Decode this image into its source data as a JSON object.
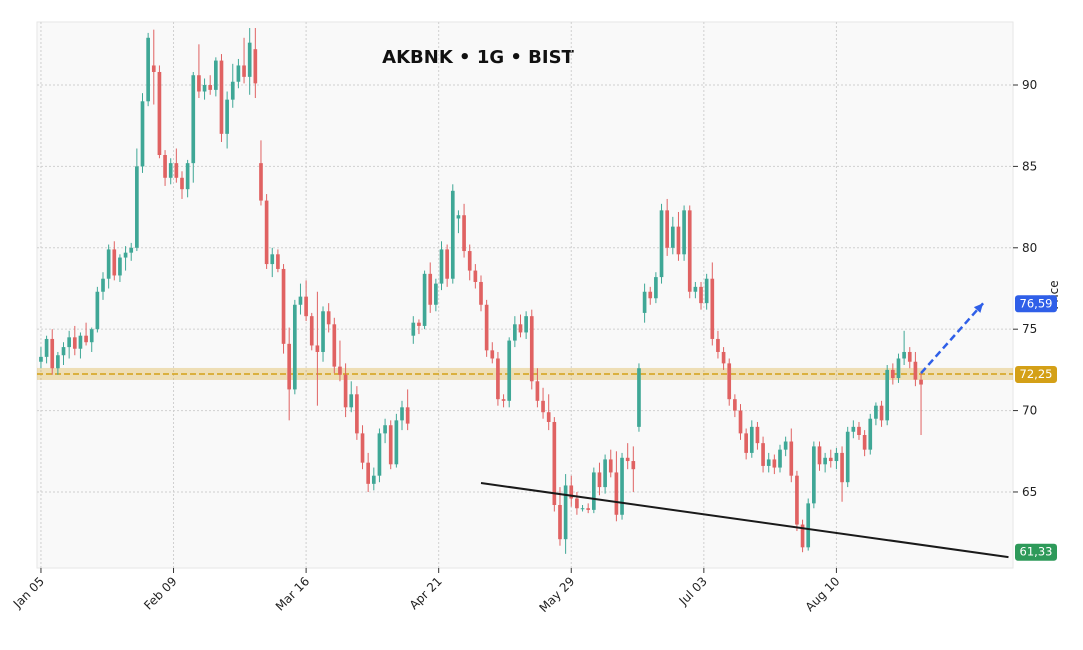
{
  "chart_data": {
    "type": "candlestick",
    "title": "AKBNK • 1G • BIST",
    "y_label": "Price",
    "xlim": [
      -0.7,
      172.3
    ],
    "xticks": [
      {
        "value": 0,
        "label": "Jan 05"
      },
      {
        "value": 23.5,
        "label": "Feb 09"
      },
      {
        "value": 47,
        "label": "Mar 16"
      },
      {
        "value": 70.5,
        "label": "Apr 21"
      },
      {
        "value": 94,
        "label": "May 29"
      },
      {
        "value": 117.5,
        "label": "Jul 03"
      },
      {
        "value": 141,
        "label": "Aug 10"
      }
    ],
    "ylim": [
      60.33,
      93.87
    ],
    "yticks": [
      65,
      70,
      75,
      80,
      85,
      90
    ],
    "grid": true,
    "up_color": "#3fa796",
    "down_color": "#e06262",
    "ohlc": [
      [
        73.0,
        73.9,
        72.6,
        73.3
      ],
      [
        73.3,
        74.6,
        72.9,
        74.4
      ],
      [
        74.4,
        75.0,
        72.2,
        72.6
      ],
      [
        72.6,
        73.6,
        72.2,
        73.4
      ],
      [
        73.4,
        74.2,
        72.8,
        73.9
      ],
      [
        73.9,
        74.9,
        73.2,
        74.5
      ],
      [
        74.5,
        75.2,
        73.4,
        73.8
      ],
      [
        73.8,
        74.8,
        73.2,
        74.6
      ],
      [
        74.6,
        75.4,
        74.0,
        74.2
      ],
      [
        74.2,
        75.1,
        73.6,
        75.0
      ],
      [
        75.0,
        77.6,
        74.8,
        77.3
      ],
      [
        77.3,
        78.5,
        76.8,
        78.1
      ],
      [
        78.1,
        80.2,
        77.5,
        79.9
      ],
      [
        79.9,
        80.4,
        78.0,
        78.3
      ],
      [
        78.3,
        79.6,
        77.9,
        79.4
      ],
      [
        79.4,
        80.1,
        78.6,
        79.7
      ],
      [
        79.7,
        80.3,
        79.2,
        80.0
      ],
      [
        80.0,
        86.1,
        79.8,
        85.0
      ],
      [
        85.0,
        89.5,
        84.6,
        89.0
      ],
      [
        89.0,
        93.2,
        88.7,
        92.9
      ],
      [
        91.2,
        93.4,
        88.8,
        90.8
      ],
      [
        90.8,
        91.2,
        85.5,
        85.7
      ],
      [
        85.7,
        86.0,
        83.8,
        84.3
      ],
      [
        84.3,
        85.5,
        83.9,
        85.2
      ],
      [
        85.2,
        86.1,
        84.0,
        84.3
      ],
      [
        84.3,
        84.7,
        83.0,
        83.6
      ],
      [
        83.6,
        85.4,
        83.1,
        85.2
      ],
      [
        85.2,
        90.8,
        84.0,
        90.6
      ],
      [
        90.6,
        92.5,
        89.2,
        89.6
      ],
      [
        89.6,
        90.4,
        89.1,
        90.0
      ],
      [
        90.0,
        90.6,
        89.4,
        89.7
      ],
      [
        89.7,
        91.7,
        89.3,
        91.5
      ],
      [
        91.5,
        91.9,
        86.5,
        87.0
      ],
      [
        87.0,
        89.6,
        86.1,
        89.1
      ],
      [
        89.1,
        91.3,
        88.6,
        90.2
      ],
      [
        90.2,
        91.6,
        89.8,
        91.2
      ],
      [
        91.2,
        92.9,
        90.1,
        90.5
      ],
      [
        90.5,
        93.5,
        89.4,
        92.6
      ],
      [
        92.2,
        93.5,
        89.2,
        90.1
      ],
      [
        85.2,
        86.6,
        82.6,
        82.9
      ],
      [
        82.9,
        83.3,
        78.7,
        79.0
      ],
      [
        79.0,
        80.0,
        78.2,
        79.6
      ],
      [
        79.6,
        79.9,
        78.5,
        78.7
      ],
      [
        78.7,
        79.0,
        73.5,
        74.1
      ],
      [
        74.1,
        75.1,
        69.4,
        71.3
      ],
      [
        71.3,
        76.8,
        71.0,
        76.5
      ],
      [
        76.5,
        77.8,
        75.9,
        77.0
      ],
      [
        77.0,
        78.0,
        75.5,
        75.8
      ],
      [
        75.8,
        76.0,
        73.7,
        74.0
      ],
      [
        74.0,
        77.3,
        70.3,
        73.6
      ],
      [
        73.6,
        76.4,
        73.0,
        76.1
      ],
      [
        76.1,
        76.6,
        74.8,
        75.3
      ],
      [
        75.3,
        75.7,
        72.3,
        72.7
      ],
      [
        72.7,
        74.3,
        71.8,
        72.2
      ],
      [
        72.2,
        72.9,
        69.6,
        70.2
      ],
      [
        70.2,
        71.8,
        69.9,
        71.0
      ],
      [
        71.0,
        71.5,
        68.2,
        68.6
      ],
      [
        68.6,
        69.1,
        66.4,
        66.8
      ],
      [
        66.8,
        67.4,
        65.0,
        65.5
      ],
      [
        65.5,
        66.5,
        65.1,
        66.0
      ],
      [
        66.0,
        68.9,
        65.6,
        68.6
      ],
      [
        68.6,
        69.5,
        68.0,
        69.1
      ],
      [
        69.1,
        69.4,
        66.4,
        66.7
      ],
      [
        66.7,
        69.8,
        66.5,
        69.4
      ],
      [
        69.4,
        70.6,
        68.8,
        70.2
      ],
      [
        70.2,
        71.3,
        68.8,
        69.2
      ],
      [
        74.6,
        75.8,
        74.1,
        75.4
      ],
      [
        75.4,
        75.6,
        74.7,
        75.2
      ],
      [
        75.2,
        78.6,
        75.0,
        78.4
      ],
      [
        78.4,
        79.1,
        76.0,
        76.5
      ],
      [
        76.5,
        78.1,
        76.1,
        77.8
      ],
      [
        77.8,
        80.4,
        77.4,
        79.9
      ],
      [
        79.9,
        80.2,
        77.6,
        78.1
      ],
      [
        78.1,
        83.9,
        77.8,
        83.5
      ],
      [
        81.8,
        82.3,
        80.9,
        82.0
      ],
      [
        82.0,
        82.7,
        79.4,
        79.8
      ],
      [
        79.8,
        80.2,
        78.0,
        78.6
      ],
      [
        78.6,
        79.0,
        77.5,
        77.9
      ],
      [
        77.9,
        78.3,
        76.1,
        76.5
      ],
      [
        76.5,
        76.8,
        73.3,
        73.7
      ],
      [
        73.7,
        74.2,
        72.9,
        73.2
      ],
      [
        73.2,
        73.6,
        70.3,
        70.7
      ],
      [
        70.7,
        71.0,
        70.2,
        70.6
      ],
      [
        70.6,
        74.5,
        70.2,
        74.3
      ],
      [
        74.3,
        75.8,
        73.9,
        75.3
      ],
      [
        75.3,
        75.9,
        74.5,
        74.8
      ],
      [
        74.8,
        76.1,
        74.4,
        75.8
      ],
      [
        75.8,
        76.2,
        71.3,
        71.8
      ],
      [
        71.8,
        72.6,
        70.2,
        70.6
      ],
      [
        70.6,
        71.4,
        69.5,
        69.9
      ],
      [
        69.9,
        71.0,
        68.8,
        69.3
      ],
      [
        69.3,
        69.6,
        63.8,
        64.2
      ],
      [
        64.2,
        65.3,
        61.7,
        62.1
      ],
      [
        62.1,
        66.1,
        61.2,
        65.4
      ],
      [
        65.4,
        66.0,
        64.1,
        64.6
      ],
      [
        64.6,
        65.0,
        63.6,
        64.0
      ],
      [
        64.0,
        64.2,
        63.8,
        64.0
      ],
      [
        64.0,
        64.3,
        63.7,
        63.9
      ],
      [
        63.9,
        66.5,
        63.7,
        66.2
      ],
      [
        66.2,
        66.8,
        64.8,
        65.3
      ],
      [
        65.3,
        67.3,
        64.9,
        67.0
      ],
      [
        67.0,
        67.6,
        65.9,
        66.2
      ],
      [
        66.2,
        67.5,
        63.2,
        63.6
      ],
      [
        63.6,
        67.4,
        63.3,
        67.1
      ],
      [
        67.1,
        68.0,
        66.4,
        66.9
      ],
      [
        66.9,
        67.8,
        65.0,
        66.4
      ],
      [
        69.0,
        72.9,
        68.7,
        72.6
      ],
      [
        76.0,
        77.8,
        75.4,
        77.3
      ],
      [
        77.3,
        77.6,
        76.5,
        76.9
      ],
      [
        76.9,
        78.5,
        76.6,
        78.2
      ],
      [
        78.2,
        82.7,
        77.8,
        82.3
      ],
      [
        82.3,
        83.0,
        79.5,
        80.0
      ],
      [
        80.0,
        81.9,
        79.6,
        81.3
      ],
      [
        81.3,
        82.2,
        79.2,
        79.6
      ],
      [
        79.6,
        82.6,
        79.2,
        82.3
      ],
      [
        82.3,
        82.6,
        76.9,
        77.3
      ],
      [
        77.3,
        77.9,
        76.9,
        77.6
      ],
      [
        77.6,
        77.9,
        76.2,
        76.6
      ],
      [
        76.6,
        78.4,
        76.2,
        78.1
      ],
      [
        78.1,
        79.1,
        74.0,
        74.4
      ],
      [
        74.4,
        74.9,
        73.2,
        73.6
      ],
      [
        73.6,
        73.9,
        72.5,
        72.9
      ],
      [
        72.9,
        73.2,
        70.3,
        70.7
      ],
      [
        70.7,
        71.0,
        69.6,
        70.0
      ],
      [
        70.0,
        70.4,
        68.2,
        68.6
      ],
      [
        68.6,
        68.9,
        67.0,
        67.4
      ],
      [
        67.4,
        69.4,
        67.1,
        69.0
      ],
      [
        69.0,
        69.3,
        67.6,
        68.0
      ],
      [
        68.0,
        68.4,
        66.2,
        66.6
      ],
      [
        66.6,
        67.4,
        66.2,
        67.0
      ],
      [
        67.0,
        67.3,
        66.1,
        66.5
      ],
      [
        66.5,
        67.9,
        66.2,
        67.6
      ],
      [
        67.6,
        68.4,
        67.2,
        68.1
      ],
      [
        68.1,
        68.9,
        65.6,
        66.0
      ],
      [
        66.0,
        66.3,
        62.6,
        63.0
      ],
      [
        63.0,
        63.3,
        61.3,
        61.6
      ],
      [
        61.6,
        64.6,
        61.4,
        64.3
      ],
      [
        64.3,
        68.1,
        64.0,
        67.8
      ],
      [
        67.8,
        68.1,
        66.3,
        66.7
      ],
      [
        66.7,
        67.4,
        66.2,
        67.1
      ],
      [
        67.1,
        67.6,
        66.5,
        66.9
      ],
      [
        66.9,
        67.7,
        66.4,
        67.4
      ],
      [
        67.4,
        67.8,
        64.4,
        65.6
      ],
      [
        65.6,
        69.0,
        65.3,
        68.7
      ],
      [
        68.7,
        69.4,
        68.3,
        69.0
      ],
      [
        69.0,
        69.3,
        68.2,
        68.5
      ],
      [
        68.5,
        68.8,
        67.2,
        67.6
      ],
      [
        67.6,
        69.8,
        67.3,
        69.5
      ],
      [
        69.5,
        70.5,
        69.1,
        70.3
      ],
      [
        70.3,
        70.6,
        69.0,
        69.4
      ],
      [
        69.4,
        72.8,
        69.1,
        72.5
      ],
      [
        72.5,
        72.9,
        71.6,
        72.0
      ],
      [
        72.0,
        73.5,
        71.7,
        73.2
      ],
      [
        73.2,
        74.9,
        72.8,
        73.6
      ],
      [
        73.6,
        73.9,
        72.6,
        73.0
      ],
      [
        73.0,
        73.6,
        71.5,
        71.9
      ],
      [
        71.9,
        72.3,
        68.5,
        71.6
      ]
    ],
    "level": {
      "value": 72.25,
      "label": "72,25",
      "color": "#d4a017"
    },
    "target": {
      "value": 76.59,
      "label": "76,59",
      "color": "#2f5fe8",
      "from": [
        156,
        72.3
      ],
      "to": [
        167,
        76.59
      ]
    },
    "trendline": {
      "value": 61.33,
      "label": "61,33",
      "color": "#1a1a1a",
      "badge_color": "#2e9a5a",
      "points": [
        [
          78,
          65.55
        ],
        [
          171.5,
          61.0
        ]
      ]
    }
  }
}
